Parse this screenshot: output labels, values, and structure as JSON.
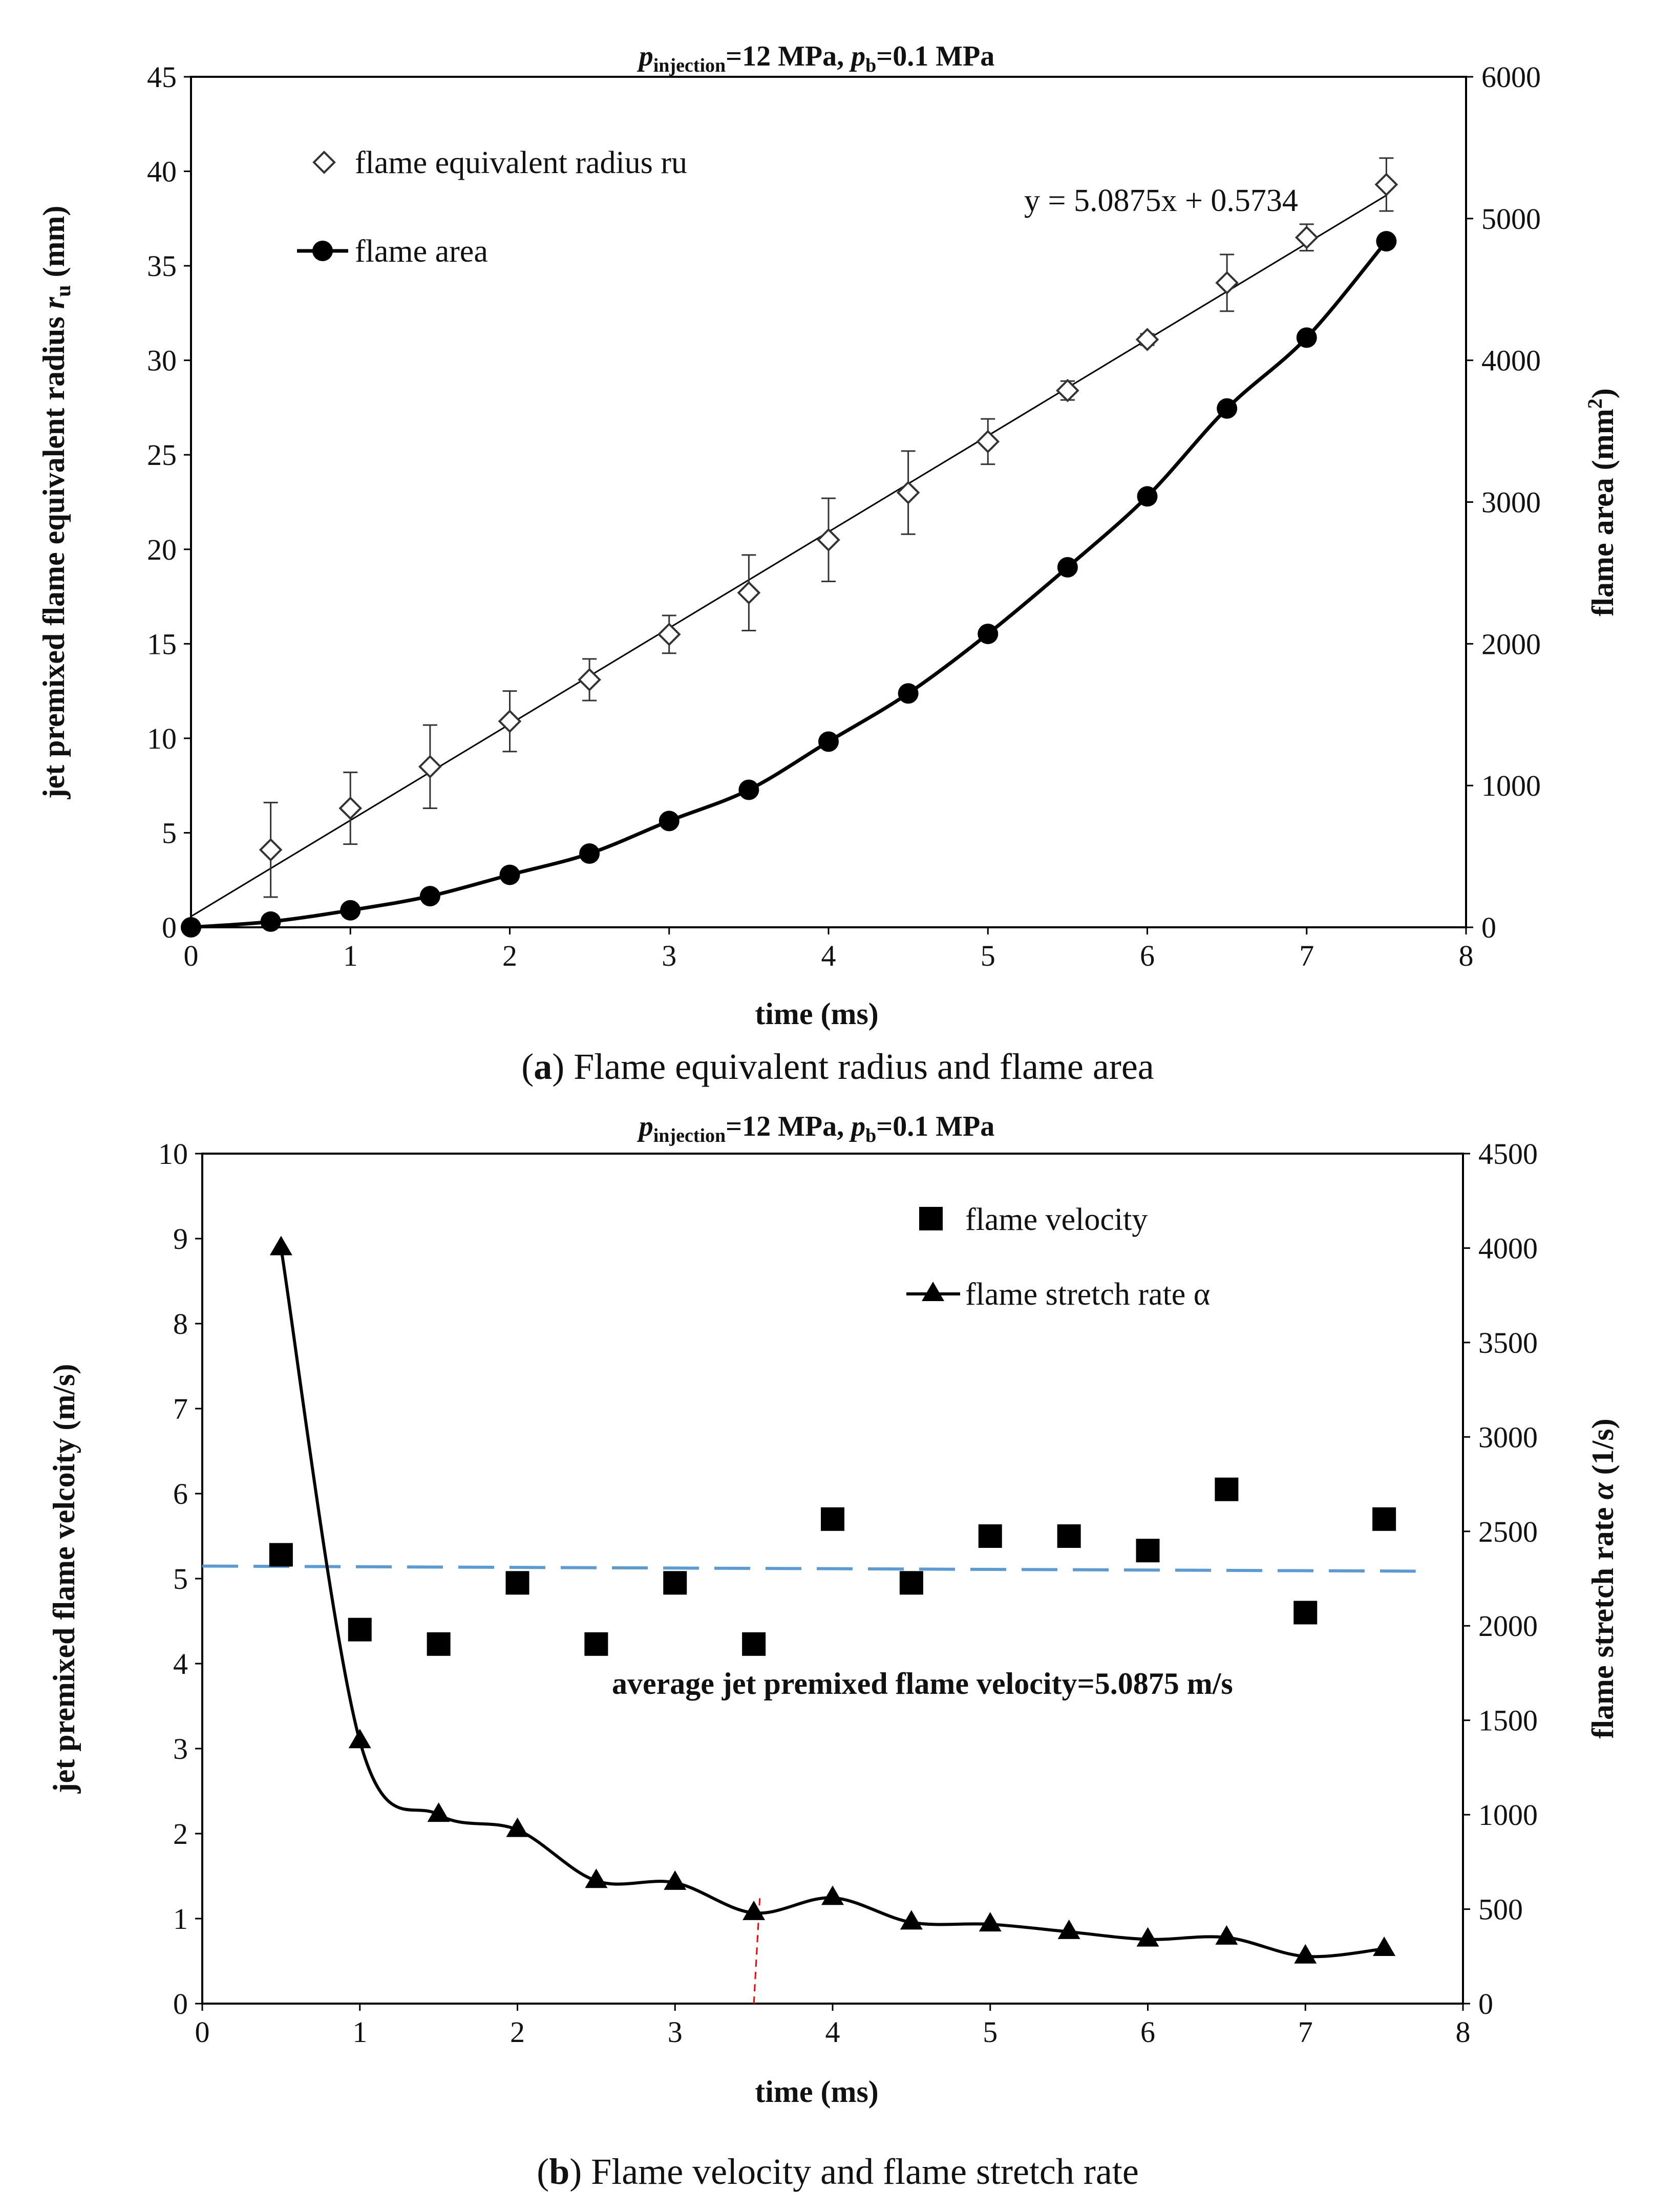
{
  "chart_data": [
    {
      "panel": "a",
      "type": "scatter+line",
      "title": {
        "p1": "p",
        "p1_sub": "injection",
        "mid": "=12 MPa, ",
        "p2": "p",
        "p2_sub": "b",
        "end": "=0.1 MPa"
      },
      "xlabel": "time (ms)",
      "ylabel_left": {
        "main": "jet premixed flame equivalent radius ",
        "var": "r",
        "sub": "u",
        "unit": " (mm)"
      },
      "ylabel_right": {
        "main": "flame area (mm",
        "sup": "2",
        "end": ")"
      },
      "xlim": [
        0,
        8
      ],
      "ylim_left": [
        0,
        45
      ],
      "ylim_right": [
        0,
        6000
      ],
      "xticks": [
        "0",
        "1",
        "2",
        "3",
        "4",
        "5",
        "6",
        "7",
        "8"
      ],
      "yticks_left": [
        "0",
        "5",
        "10",
        "15",
        "20",
        "25",
        "30",
        "35",
        "40",
        "45"
      ],
      "yticks_right": [
        "0",
        "1000",
        "2000",
        "3000",
        "4000",
        "5000",
        "6000"
      ],
      "legend": [
        "flame equivalent radius ru",
        "flame area"
      ],
      "trend_equation": "y = 5.0875x  + 0.5734",
      "trend": {
        "slope": 5.0875,
        "intercept": 0.5734,
        "x_range": [
          0,
          7.5
        ]
      },
      "radius_series": {
        "name": "flame equivalent radius ru",
        "x": [
          0.5,
          1,
          1.5,
          2,
          2.5,
          3,
          3.5,
          4,
          4.5,
          5,
          5.5,
          6,
          6.5,
          7,
          7.5
        ],
        "y": [
          4.1,
          6.3,
          8.5,
          10.9,
          13.1,
          15.5,
          17.7,
          20.5,
          23,
          25.7,
          28.4,
          31.1,
          34.1,
          36.5,
          39.3
        ],
        "err": [
          2.5,
          1.9,
          2.2,
          1.6,
          1.1,
          1.0,
          2.0,
          2.2,
          2.2,
          1.2,
          0.5,
          0.3,
          1.5,
          0.7,
          1.4
        ]
      },
      "area_series": {
        "name": "flame area",
        "x": [
          0,
          0.5,
          1,
          1.5,
          2,
          2.5,
          3,
          3.5,
          4,
          4.5,
          5,
          5.5,
          6,
          6.5,
          7,
          7.5
        ],
        "y": [
          0,
          40,
          120,
          220,
          370,
          520,
          750,
          970,
          1310,
          1650,
          2070,
          2540,
          3040,
          3660,
          4160,
          4840
        ]
      },
      "caption": {
        "letter": "a",
        "text": " Flame equivalent radius and flame area"
      }
    },
    {
      "panel": "b",
      "type": "scatter+line",
      "title": {
        "p1": "p",
        "p1_sub": "injection",
        "mid": "=12 MPa, ",
        "p2": "p",
        "p2_sub": "b",
        "end": "=0.1 MPa"
      },
      "xlabel": "time (ms)",
      "ylabel_left": "jet premixed flame velcoity (m/s)",
      "ylabel_right": {
        "main": "flame stretch rate ",
        "var": "α",
        "unit": " (1/s)"
      },
      "xlim": [
        0,
        8
      ],
      "ylim_left": [
        0,
        10
      ],
      "ylim_right": [
        0,
        4500
      ],
      "xticks": [
        "0",
        "1",
        "2",
        "3",
        "4",
        "5",
        "6",
        "7",
        "8"
      ],
      "yticks_left": [
        "0",
        "1",
        "2",
        "3",
        "4",
        "5",
        "6",
        "7",
        "8",
        "9",
        "10"
      ],
      "yticks_right": [
        "0",
        "500",
        "1000",
        "1500",
        "2000",
        "2500",
        "3000",
        "3500",
        "4000",
        "4500"
      ],
      "legend": [
        "flame  velocity",
        "flame stretch rate α"
      ],
      "annotation": "average jet premixed  flame velocity=5.0875 m/s",
      "average_line": {
        "value": 5.0875,
        "x_range": [
          0,
          7.7
        ],
        "color": "#5b9bd5"
      },
      "marker_line": {
        "x": 3.5,
        "color": "#ff0000"
      },
      "velocity_series": {
        "name": "flame  velocity",
        "x": [
          0.5,
          1,
          1.5,
          2,
          2.5,
          3,
          3.5,
          4,
          4.5,
          5,
          5.5,
          6,
          6.5,
          7,
          7.5
        ],
        "y": [
          5.28,
          4.4,
          4.23,
          4.95,
          4.23,
          4.95,
          4.23,
          5.7,
          4.95,
          5.5,
          5.5,
          5.33,
          6.05,
          4.6,
          5.7
        ]
      },
      "stretch_series": {
        "name": "flame stretch rate α",
        "x": [
          0.5,
          1,
          1.5,
          2,
          2.5,
          3,
          3.5,
          4,
          4.5,
          5,
          5.5,
          6,
          6.5,
          7,
          7.5
        ],
        "y": [
          4000,
          1390,
          1000,
          920,
          650,
          640,
          480,
          560,
          430,
          420,
          380,
          340,
          350,
          250,
          290
        ]
      },
      "caption": {
        "letter": "b",
        "text": " Flame velocity and flame stretch rate"
      }
    }
  ]
}
